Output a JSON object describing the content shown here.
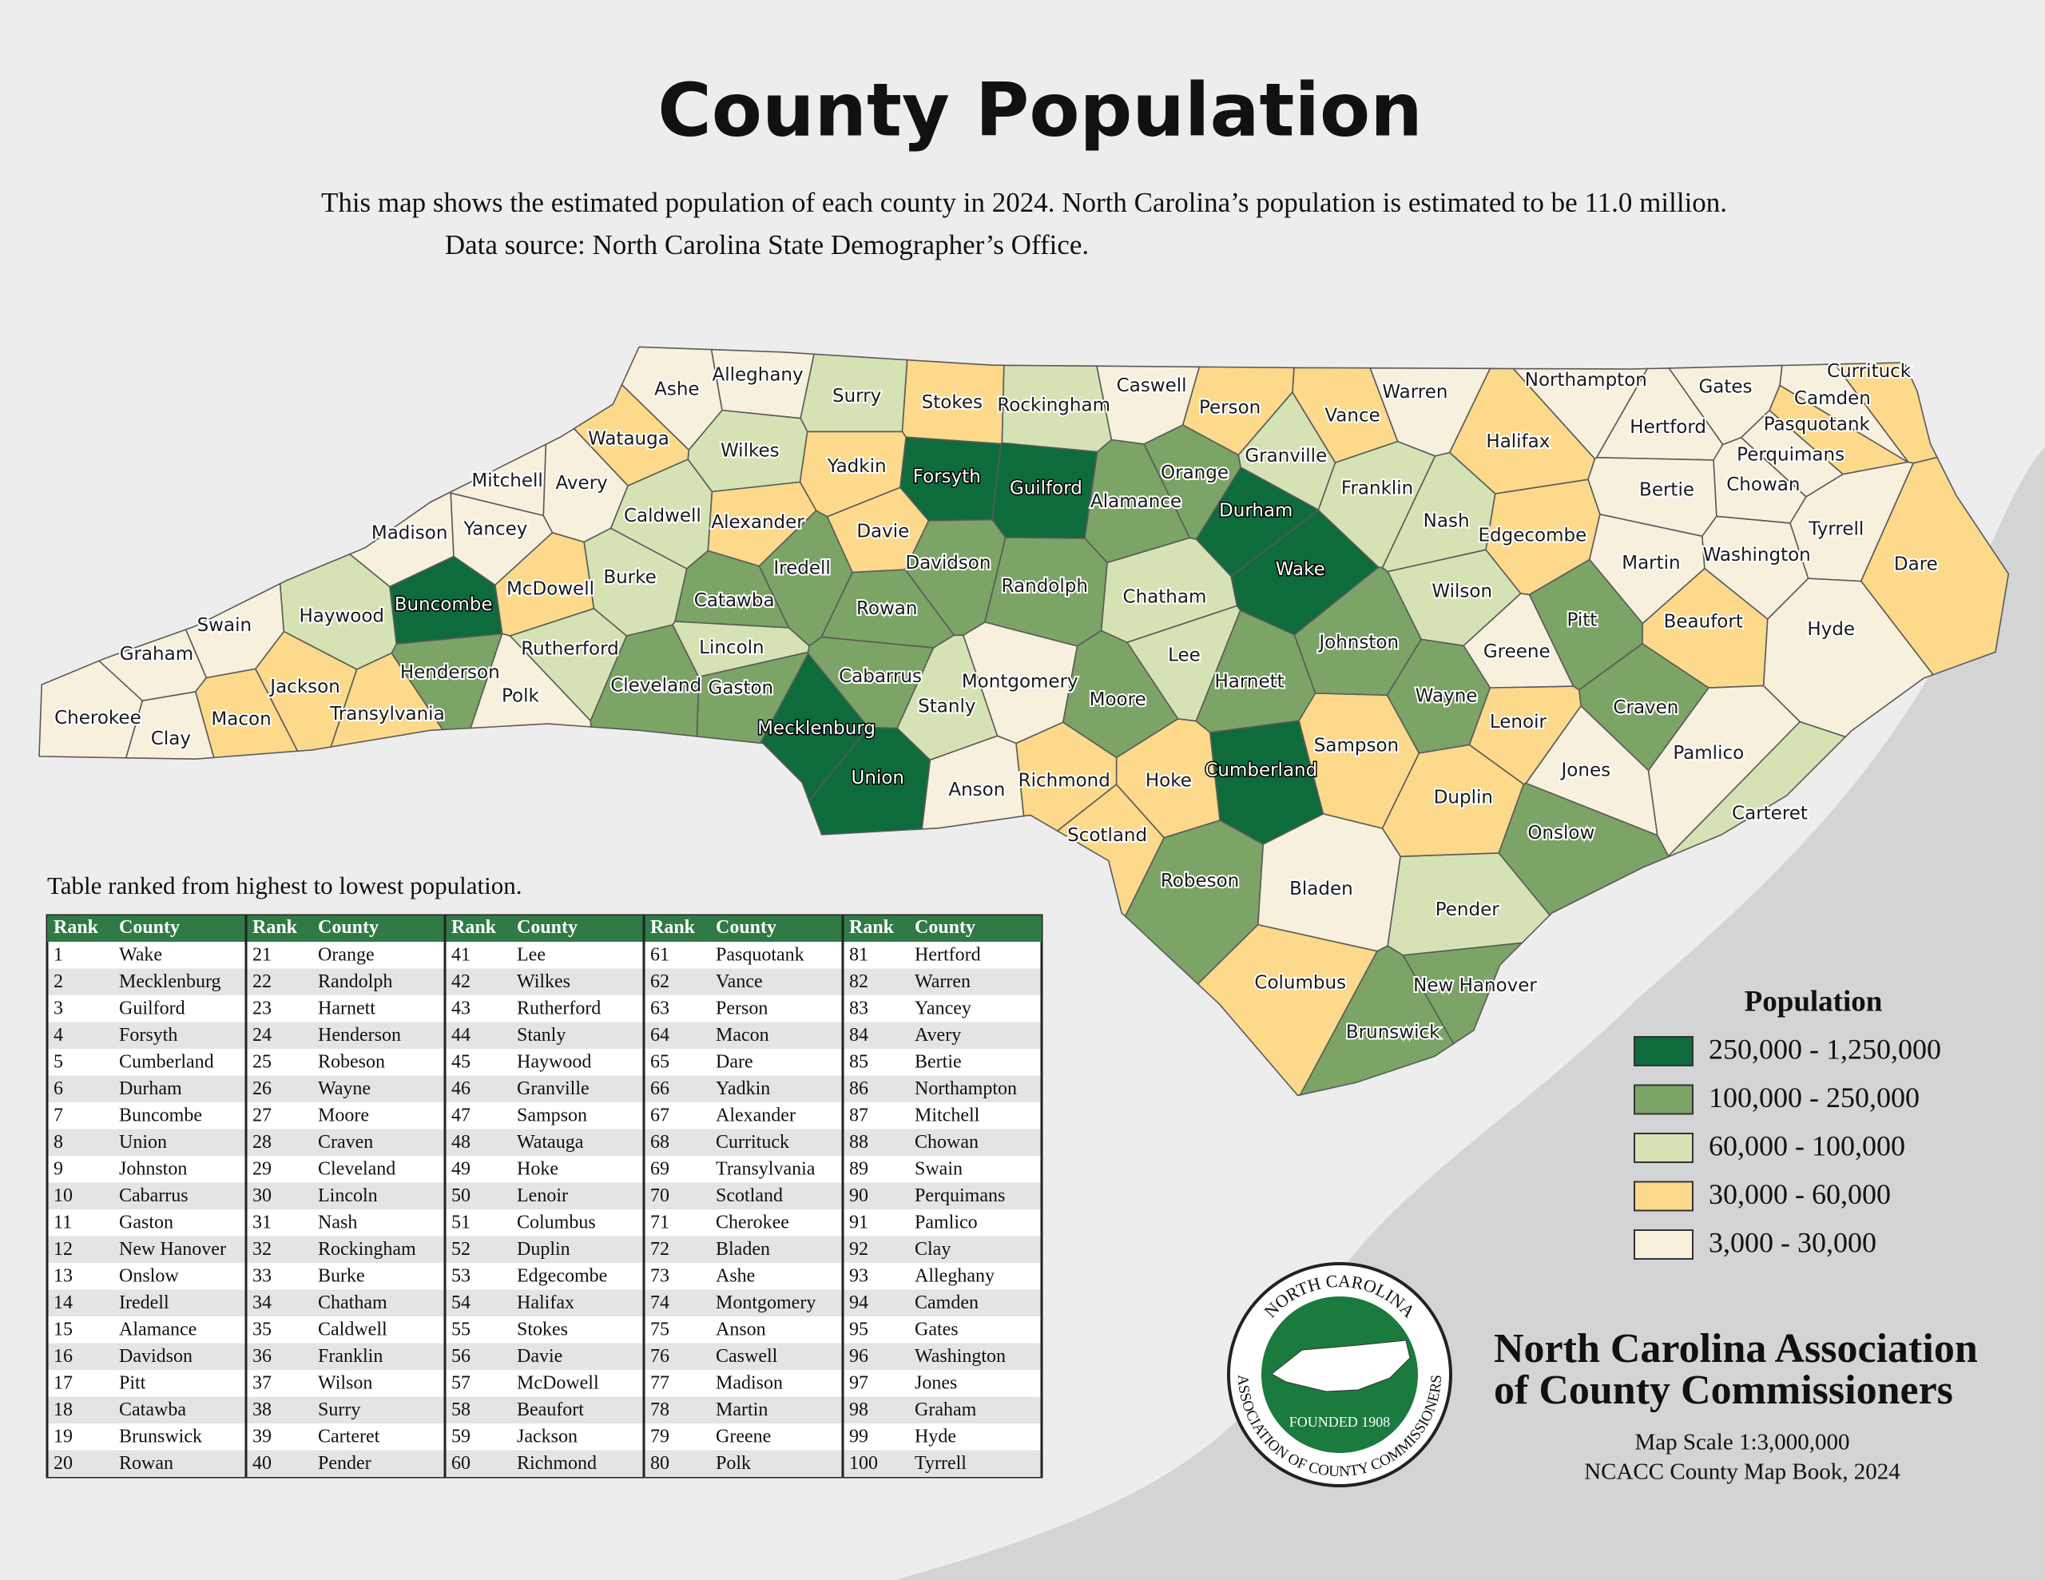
{
  "header": {
    "title": "County Population",
    "subtitle": [
      "This map shows the estimated population of each county in 2024. North Carolina’s population is estimated to be 11.0 million.",
      "Data source: North Carolina State Demographer’s Office."
    ]
  },
  "legend": {
    "title": "Population",
    "classes": [
      {
        "label": "250,000 - 1,250,000",
        "color": "#0e6b3c"
      },
      {
        "label": "100,000 - 250,000",
        "color": "#7ba466"
      },
      {
        "label": "60,000 - 100,000",
        "color": "#d5e3b4"
      },
      {
        "label": "30,000 - 60,000",
        "color": "#fcd98b"
      },
      {
        "label": "3,000 - 30,000",
        "color": "#f6f0dd"
      }
    ]
  },
  "table": {
    "caption": "Table ranked from highest to lowest population.",
    "columns": [
      "Rank",
      "County"
    ],
    "rows": [
      [
        1,
        "Wake",
        "#0e6b3c"
      ],
      [
        2,
        "Mecklenburg",
        "#0e6b3c"
      ],
      [
        3,
        "Guilford",
        "#0e6b3c"
      ],
      [
        4,
        "Forsyth",
        "#0e6b3c"
      ],
      [
        5,
        "Cumberland",
        "#0e6b3c"
      ],
      [
        6,
        "Durham",
        "#0e6b3c"
      ],
      [
        7,
        "Buncombe",
        "#0e6b3c"
      ],
      [
        8,
        "Union",
        "#0e6b3c"
      ],
      [
        9,
        "Johnston",
        "#7ba466"
      ],
      [
        10,
        "Cabarrus",
        "#7ba466"
      ],
      [
        11,
        "Gaston",
        "#7ba466"
      ],
      [
        12,
        "New Hanover",
        "#7ba466"
      ],
      [
        13,
        "Onslow",
        "#7ba466"
      ],
      [
        14,
        "Iredell",
        "#7ba466"
      ],
      [
        15,
        "Alamance",
        "#7ba466"
      ],
      [
        16,
        "Davidson",
        "#7ba466"
      ],
      [
        17,
        "Pitt",
        "#7ba466"
      ],
      [
        18,
        "Catawba",
        "#7ba466"
      ],
      [
        19,
        "Brunswick",
        "#7ba466"
      ],
      [
        20,
        "Rowan",
        "#7ba466"
      ],
      [
        21,
        "Orange",
        "#7ba466"
      ],
      [
        22,
        "Randolph",
        "#7ba466"
      ],
      [
        23,
        "Harnett",
        "#7ba466"
      ],
      [
        24,
        "Henderson",
        "#7ba466"
      ],
      [
        25,
        "Robeson",
        "#7ba466"
      ],
      [
        26,
        "Wayne",
        "#7ba466"
      ],
      [
        27,
        "Moore",
        "#7ba466"
      ],
      [
        28,
        "Craven",
        "#7ba466"
      ],
      [
        29,
        "Cleveland",
        "#7ba466"
      ],
      [
        30,
        "Lincoln",
        "#d5e3b4"
      ],
      [
        31,
        "Nash",
        "#d5e3b4"
      ],
      [
        32,
        "Rockingham",
        "#d5e3b4"
      ],
      [
        33,
        "Burke",
        "#d5e3b4"
      ],
      [
        34,
        "Chatham",
        "#d5e3b4"
      ],
      [
        35,
        "Caldwell",
        "#d5e3b4"
      ],
      [
        36,
        "Franklin",
        "#d5e3b4"
      ],
      [
        37,
        "Wilson",
        "#d5e3b4"
      ],
      [
        38,
        "Surry",
        "#d5e3b4"
      ],
      [
        39,
        "Carteret",
        "#d5e3b4"
      ],
      [
        40,
        "Pender",
        "#d5e3b4"
      ],
      [
        41,
        "Lee",
        "#d5e3b4"
      ],
      [
        42,
        "Wilkes",
        "#d5e3b4"
      ],
      [
        43,
        "Rutherford",
        "#d5e3b4"
      ],
      [
        44,
        "Stanly",
        "#d5e3b4"
      ],
      [
        45,
        "Haywood",
        "#d5e3b4"
      ],
      [
        46,
        "Granville",
        "#d5e3b4"
      ],
      [
        47,
        "Sampson",
        "#fcd98b"
      ],
      [
        48,
        "Watauga",
        "#fcd98b"
      ],
      [
        49,
        "Hoke",
        "#fcd98b"
      ],
      [
        50,
        "Lenoir",
        "#fcd98b"
      ],
      [
        51,
        "Columbus",
        "#fcd98b"
      ],
      [
        52,
        "Duplin",
        "#fcd98b"
      ],
      [
        53,
        "Edgecombe",
        "#fcd98b"
      ],
      [
        54,
        "Halifax",
        "#fcd98b"
      ],
      [
        55,
        "Stokes",
        "#fcd98b"
      ],
      [
        56,
        "Davie",
        "#fcd98b"
      ],
      [
        57,
        "McDowell",
        "#fcd98b"
      ],
      [
        58,
        "Beaufort",
        "#fcd98b"
      ],
      [
        59,
        "Jackson",
        "#fcd98b"
      ],
      [
        60,
        "Richmond",
        "#fcd98b"
      ],
      [
        61,
        "Pasquotank",
        "#fcd98b"
      ],
      [
        62,
        "Vance",
        "#fcd98b"
      ],
      [
        63,
        "Person",
        "#fcd98b"
      ],
      [
        64,
        "Macon",
        "#fcd98b"
      ],
      [
        65,
        "Dare",
        "#fcd98b"
      ],
      [
        66,
        "Yadkin",
        "#fcd98b"
      ],
      [
        67,
        "Alexander",
        "#fcd98b"
      ],
      [
        68,
        "Currituck",
        "#fcd98b"
      ],
      [
        69,
        "Transylvania",
        "#fcd98b"
      ],
      [
        70,
        "Scotland",
        "#fcd98b"
      ],
      [
        71,
        "Cherokee",
        "#f6f0dd"
      ],
      [
        72,
        "Bladen",
        "#f6f0dd"
      ],
      [
        73,
        "Ashe",
        "#f6f0dd"
      ],
      [
        74,
        "Montgomery",
        "#f6f0dd"
      ],
      [
        75,
        "Anson",
        "#f6f0dd"
      ],
      [
        76,
        "Caswell",
        "#f6f0dd"
      ],
      [
        77,
        "Madison",
        "#f6f0dd"
      ],
      [
        78,
        "Martin",
        "#f6f0dd"
      ],
      [
        79,
        "Greene",
        "#f6f0dd"
      ],
      [
        80,
        "Polk",
        "#f6f0dd"
      ],
      [
        81,
        "Hertford",
        "#f6f0dd"
      ],
      [
        82,
        "Warren",
        "#f6f0dd"
      ],
      [
        83,
        "Yancey",
        "#f6f0dd"
      ],
      [
        84,
        "Avery",
        "#f6f0dd"
      ],
      [
        85,
        "Bertie",
        "#f6f0dd"
      ],
      [
        86,
        "Northampton",
        "#f6f0dd"
      ],
      [
        87,
        "Mitchell",
        "#f6f0dd"
      ],
      [
        88,
        "Chowan",
        "#f6f0dd"
      ],
      [
        89,
        "Swain",
        "#f6f0dd"
      ],
      [
        90,
        "Perquimans",
        "#f6f0dd"
      ],
      [
        91,
        "Pamlico",
        "#f6f0dd"
      ],
      [
        92,
        "Clay",
        "#f6f0dd"
      ],
      [
        93,
        "Alleghany",
        "#f6f0dd"
      ],
      [
        94,
        "Camden",
        "#f6f0dd"
      ],
      [
        95,
        "Gates",
        "#f6f0dd"
      ],
      [
        96,
        "Washington",
        "#f6f0dd"
      ],
      [
        97,
        "Jones",
        "#f6f0dd"
      ],
      [
        98,
        "Graham",
        "#f6f0dd"
      ],
      [
        99,
        "Hyde",
        "#f6f0dd"
      ],
      [
        100,
        "Tyrrell",
        "#f6f0dd"
      ]
    ]
  },
  "logo": {
    "top": "NORTH CAROLINA",
    "bottom": "ASSOCIATION OF COUNTY COMMISSIONERS",
    "founded": "FOUNDED 1908"
  },
  "footer": {
    "org": [
      "North Carolina Association",
      "of County Commissioners"
    ],
    "scale": "Map Scale 1:3,000,000",
    "book": "NCACC County Map Book, 2024"
  }
}
